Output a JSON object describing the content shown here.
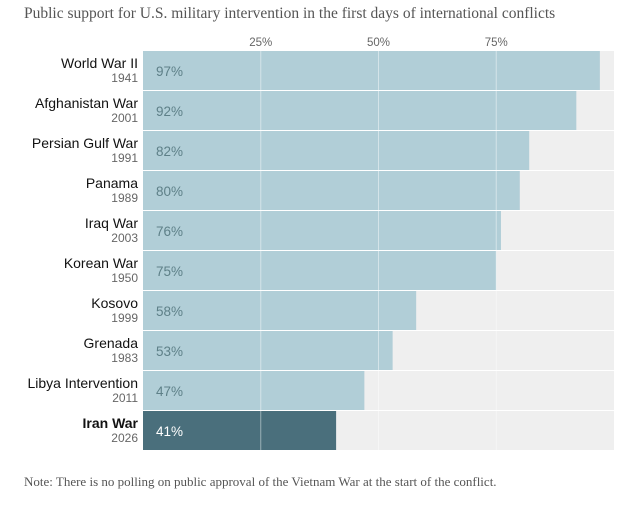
{
  "title": "Public support for U.S. military intervention in the first days of international conflicts",
  "note": "Note: There is no polling on public approval of the Vietnam War at the start of the conflict.",
  "colors": {
    "bar": "#b1ced7",
    "highlight_bar": "#4a6f7c",
    "track": "#efefef"
  },
  "chart_data": {
    "type": "bar",
    "orientation": "horizontal",
    "xlim": [
      0,
      100
    ],
    "ticks": [
      {
        "value": 25,
        "label": "25%"
      },
      {
        "value": 50,
        "label": "50%"
      },
      {
        "value": 75,
        "label": "75%"
      }
    ],
    "categories": [
      {
        "name": "World War II",
        "year": "1941",
        "value": 97,
        "label": "97%",
        "highlight": false
      },
      {
        "name": "Afghanistan War",
        "year": "2001",
        "value": 92,
        "label": "92%",
        "highlight": false
      },
      {
        "name": "Persian Gulf War",
        "year": "1991",
        "value": 82,
        "label": "82%",
        "highlight": false
      },
      {
        "name": "Panama",
        "year": "1989",
        "value": 80,
        "label": "80%",
        "highlight": false
      },
      {
        "name": "Iraq War",
        "year": "2003",
        "value": 76,
        "label": "76%",
        "highlight": false
      },
      {
        "name": "Korean War",
        "year": "1950",
        "value": 75,
        "label": "75%",
        "highlight": false
      },
      {
        "name": "Kosovo",
        "year": "1999",
        "value": 58,
        "label": "58%",
        "highlight": false
      },
      {
        "name": "Grenada",
        "year": "1983",
        "value": 53,
        "label": "53%",
        "highlight": false
      },
      {
        "name": "Libya Intervention",
        "year": "2011",
        "value": 47,
        "label": "47%",
        "highlight": false
      },
      {
        "name": "Iran War",
        "year": "2026",
        "value": 41,
        "label": "41%",
        "highlight": true
      }
    ]
  }
}
